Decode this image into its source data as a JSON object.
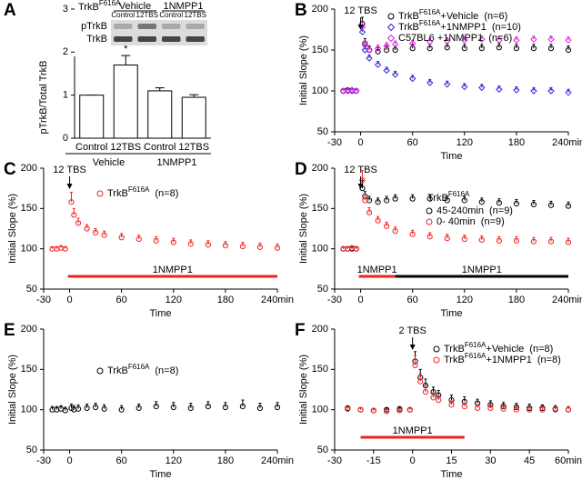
{
  "chart_data": [
    {
      "type": "bar",
      "panel": "A",
      "y_label": "pTrkB/Total TrkB",
      "categories": [
        "Control",
        "12TBS",
        "Control",
        "12TBS"
      ],
      "group_labels": [
        "Vehicle",
        "1NMPP1"
      ],
      "values": [
        1.0,
        1.7,
        1.1,
        0.95
      ],
      "errors": [
        0,
        0.22,
        0.07,
        0.06
      ],
      "color": "#ffffff",
      "ylim": [
        0,
        3
      ],
      "yticks": [
        0,
        1,
        2,
        3
      ],
      "significance": "*",
      "blot": {
        "title": "TrkB",
        "title_sup": "F616A",
        "groups": [
          "Vehicle",
          "1NMPP1"
        ],
        "lanes": [
          "Control",
          "12TBS",
          "Control",
          "12TBS"
        ],
        "rows": [
          "pTrkB",
          "TrkB"
        ]
      }
    },
    {
      "type": "line",
      "panel": "B",
      "x_label": "Time",
      "y_label": "Initial Slope (%)",
      "xlim": [
        -30,
        240
      ],
      "xticks": [
        -30,
        0,
        60,
        120,
        180,
        {
          "value": 240,
          "label": "240min"
        }
      ],
      "ylim": [
        50,
        200
      ],
      "yticks": [
        50,
        100,
        150,
        200
      ],
      "annotation": {
        "text": "12 TBS",
        "x": 0
      },
      "x": [
        -20,
        -15,
        -10,
        -5,
        2,
        5,
        10,
        20,
        30,
        40,
        60,
        80,
        100,
        120,
        140,
        160,
        180,
        200,
        220,
        240
      ],
      "series": [
        {
          "name": "TrkB",
          "name_sup": "F616A",
          "name_rest": "+Vehicle",
          "n_label": "(n=6)",
          "color": "#000000",
          "marker": "circle",
          "values": [
            100,
            101,
            100,
            100,
            182,
            158,
            150,
            148,
            150,
            150,
            152,
            152,
            153,
            152,
            152,
            153,
            152,
            152,
            152,
            150
          ],
          "errors": [
            2,
            2,
            2,
            2,
            8,
            6,
            5,
            5,
            5,
            5,
            5,
            5,
            5,
            5,
            5,
            5,
            5,
            5,
            5,
            5
          ]
        },
        {
          "name": "TrkB",
          "name_sup": "F616A",
          "name_rest": "+1NMPP1",
          "n_label": "(n=10)",
          "color": "#2b2bd8",
          "marker": "diamond",
          "values": [
            100,
            100,
            101,
            100,
            172,
            150,
            140,
            132,
            125,
            120,
            115,
            110,
            108,
            105,
            104,
            102,
            101,
            100,
            100,
            98
          ],
          "errors": [
            2,
            2,
            2,
            2,
            6,
            5,
            4,
            4,
            4,
            4,
            4,
            4,
            4,
            4,
            4,
            4,
            4,
            4,
            4,
            4
          ]
        },
        {
          "name": "C57BL6",
          "name_rest": " +1NMPP1",
          "n_label": "(n=6)",
          "color": "#e020e0",
          "marker": "diamond",
          "values": [
            100,
            100,
            100,
            100,
            178,
            156,
            150,
            152,
            155,
            157,
            158,
            160,
            161,
            162,
            163,
            162,
            162,
            163,
            163,
            162
          ],
          "errors": [
            2,
            2,
            2,
            2,
            6,
            5,
            4,
            4,
            4,
            4,
            4,
            4,
            4,
            4,
            4,
            4,
            4,
            4,
            4,
            4
          ]
        }
      ]
    },
    {
      "type": "line",
      "panel": "C",
      "x_label": "Time",
      "y_label": "Initial Slope (%)",
      "xlim": [
        -30,
        240
      ],
      "xticks": [
        -30,
        0,
        60,
        120,
        180,
        {
          "value": 240,
          "label": "240min"
        }
      ],
      "ylim": [
        50,
        200
      ],
      "yticks": [
        50,
        100,
        150,
        200
      ],
      "annotation": {
        "text": "12 TBS",
        "x": 0
      },
      "drug_bars": [
        {
          "label": "1NMPP1",
          "x": [
            -2,
            240
          ],
          "color": "#ee2222"
        }
      ],
      "x": [
        -20,
        -15,
        -10,
        -5,
        2,
        5,
        10,
        20,
        30,
        40,
        60,
        80,
        100,
        120,
        140,
        160,
        180,
        200,
        220,
        240
      ],
      "series": [
        {
          "name": "TrkB",
          "name_sup": "F616A",
          "n_label": "(n=8)",
          "color": "#ee2222",
          "marker": "circle",
          "values": [
            100,
            100,
            101,
            100,
            158,
            142,
            132,
            125,
            120,
            117,
            114,
            112,
            110,
            108,
            106,
            105,
            104,
            103,
            102,
            101
          ],
          "errors": [
            2,
            2,
            2,
            2,
            12,
            8,
            6,
            5,
            5,
            5,
            5,
            5,
            5,
            5,
            5,
            5,
            5,
            5,
            5,
            5
          ]
        }
      ]
    },
    {
      "type": "line",
      "panel": "D",
      "x_label": "Time",
      "y_label": "Initial Slope (%)",
      "xlim": [
        -30,
        240
      ],
      "xticks": [
        -30,
        0,
        60,
        120,
        180,
        {
          "value": 240,
          "label": "240min"
        }
      ],
      "ylim": [
        50,
        200
      ],
      "yticks": [
        50,
        100,
        150,
        200
      ],
      "annotation": {
        "text": "12 TBS",
        "x": 0
      },
      "legend_title": "TrkB",
      "legend_title_sup": "F616A",
      "drug_bars": [
        {
          "label": "1NMPP1",
          "x": [
            -2,
            40
          ],
          "color": "#ee2222"
        },
        {
          "label": "1NMPP1",
          "x": [
            40,
            240
          ],
          "color": "#000000"
        }
      ],
      "x": [
        -20,
        -15,
        -10,
        -5,
        2,
        5,
        10,
        20,
        30,
        40,
        60,
        80,
        100,
        120,
        140,
        160,
        180,
        200,
        220,
        240
      ],
      "series": [
        {
          "name": "45-240min",
          "n_label": "(n=9)",
          "color": "#000000",
          "marker": "circle",
          "values": [
            100,
            100,
            100,
            100,
            175,
            165,
            160,
            158,
            160,
            162,
            162,
            162,
            160,
            160,
            158,
            157,
            156,
            155,
            154,
            153
          ],
          "errors": [
            2,
            2,
            2,
            2,
            10,
            6,
            5,
            5,
            5,
            5,
            5,
            5,
            5,
            5,
            5,
            5,
            5,
            5,
            5,
            5
          ]
        },
        {
          "name": "0-  40min",
          "n_label": "(n=9)",
          "color": "#ee2222",
          "marker": "circle",
          "values": [
            100,
            100,
            101,
            100,
            185,
            160,
            145,
            135,
            128,
            122,
            118,
            115,
            113,
            112,
            111,
            110,
            110,
            109,
            109,
            108
          ],
          "errors": [
            2,
            2,
            2,
            2,
            12,
            8,
            6,
            5,
            5,
            5,
            5,
            5,
            5,
            5,
            5,
            5,
            5,
            5,
            5,
            5
          ]
        }
      ]
    },
    {
      "type": "line",
      "panel": "E",
      "x_label": "Time",
      "y_label": "Initial Slope (%)",
      "xlim": [
        -30,
        240
      ],
      "xticks": [
        -30,
        0,
        60,
        120,
        180,
        {
          "value": 240,
          "label": "240min"
        }
      ],
      "ylim": [
        50,
        200
      ],
      "yticks": [
        50,
        100,
        150,
        200
      ],
      "x": [
        -20,
        -15,
        -10,
        -5,
        2,
        5,
        10,
        20,
        30,
        40,
        60,
        80,
        100,
        120,
        140,
        160,
        180,
        200,
        220,
        240
      ],
      "series": [
        {
          "name": "TrkB",
          "name_sup": "F616A",
          "n_label": "(n=8)",
          "color": "#000000",
          "marker": "circle",
          "values": [
            100,
            100,
            101,
            99,
            102,
            100,
            101,
            102,
            103,
            101,
            100,
            102,
            104,
            103,
            102,
            104,
            103,
            104,
            102,
            103
          ],
          "errors": [
            4,
            4,
            4,
            4,
            5,
            5,
            5,
            5,
            5,
            5,
            5,
            5,
            6,
            6,
            6,
            6,
            6,
            8,
            6,
            6
          ]
        }
      ]
    },
    {
      "type": "line",
      "panel": "F",
      "x_label": "Time",
      "y_label": "Initial Slope (%)",
      "xlim": [
        -30,
        60
      ],
      "xticks": [
        -30,
        -15,
        0,
        15,
        30,
        45,
        {
          "value": 60,
          "label": "60min"
        }
      ],
      "ylim": [
        50,
        200
      ],
      "yticks": [
        50,
        100,
        150,
        200
      ],
      "annotation": {
        "text": "2 TBS",
        "x": 0
      },
      "drug_bars": [
        {
          "label": "1NMPP1",
          "x": [
            -20,
            20
          ],
          "color": "#ee2222"
        }
      ],
      "x": [
        -25,
        -20,
        -15,
        -10,
        -5,
        -1,
        1,
        3,
        5,
        8,
        10,
        15,
        20,
        25,
        30,
        35,
        40,
        45,
        50,
        55,
        60
      ],
      "series": [
        {
          "name": "TrkB",
          "name_sup": "F616A",
          "name_rest": "+Vehicle",
          "n_label": "(n=8)",
          "color": "#000000",
          "marker": "circle",
          "values": [
            102,
            100,
            99,
            100,
            101,
            100,
            160,
            140,
            130,
            122,
            118,
            112,
            110,
            108,
            106,
            104,
            103,
            102,
            102,
            101,
            100
          ],
          "errors": [
            2,
            2,
            2,
            2,
            2,
            2,
            12,
            10,
            8,
            6,
            6,
            6,
            6,
            5,
            5,
            5,
            5,
            5,
            4,
            4,
            4
          ]
        },
        {
          "name": "TrkB",
          "name_sup": "F616A",
          "name_rest": "+1NMPP1",
          "n_label": "(n=8)",
          "color": "#ee2222",
          "marker": "circle",
          "values": [
            101,
            100,
            99,
            98,
            99,
            100,
            155,
            135,
            122,
            115,
            112,
            106,
            104,
            102,
            102,
            101,
            100,
            100,
            100,
            100,
            100
          ],
          "errors": [
            2,
            2,
            2,
            2,
            2,
            2,
            12,
            10,
            8,
            6,
            5,
            5,
            4,
            4,
            4,
            4,
            4,
            4,
            4,
            4,
            4
          ]
        }
      ]
    }
  ]
}
